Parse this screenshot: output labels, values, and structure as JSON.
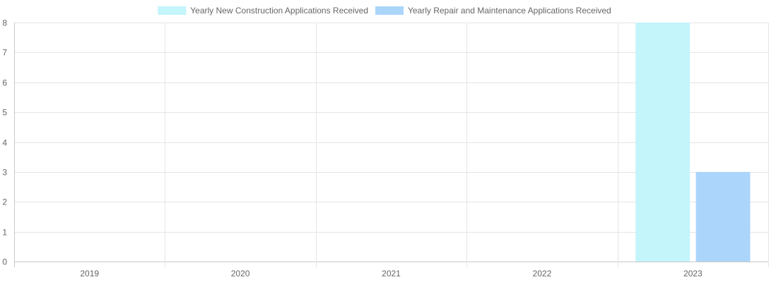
{
  "chart_data": {
    "type": "bar",
    "categories": [
      "2019",
      "2020",
      "2021",
      "2022",
      "2023"
    ],
    "series": [
      {
        "name": "Yearly New Construction Applications Received",
        "values": [
          0,
          0,
          0,
          0,
          8
        ],
        "color": "#c3f5fb"
      },
      {
        "name": "Yearly Repair and Maintenance Applications Received",
        "values": [
          0,
          0,
          0,
          0,
          3
        ],
        "color": "#abd5fb"
      }
    ],
    "y_ticks": [
      "0",
      "1",
      "2",
      "3",
      "4",
      "5",
      "6",
      "7",
      "8"
    ],
    "ylim": [
      0,
      8
    ],
    "grid": true,
    "legend_position": "top"
  }
}
